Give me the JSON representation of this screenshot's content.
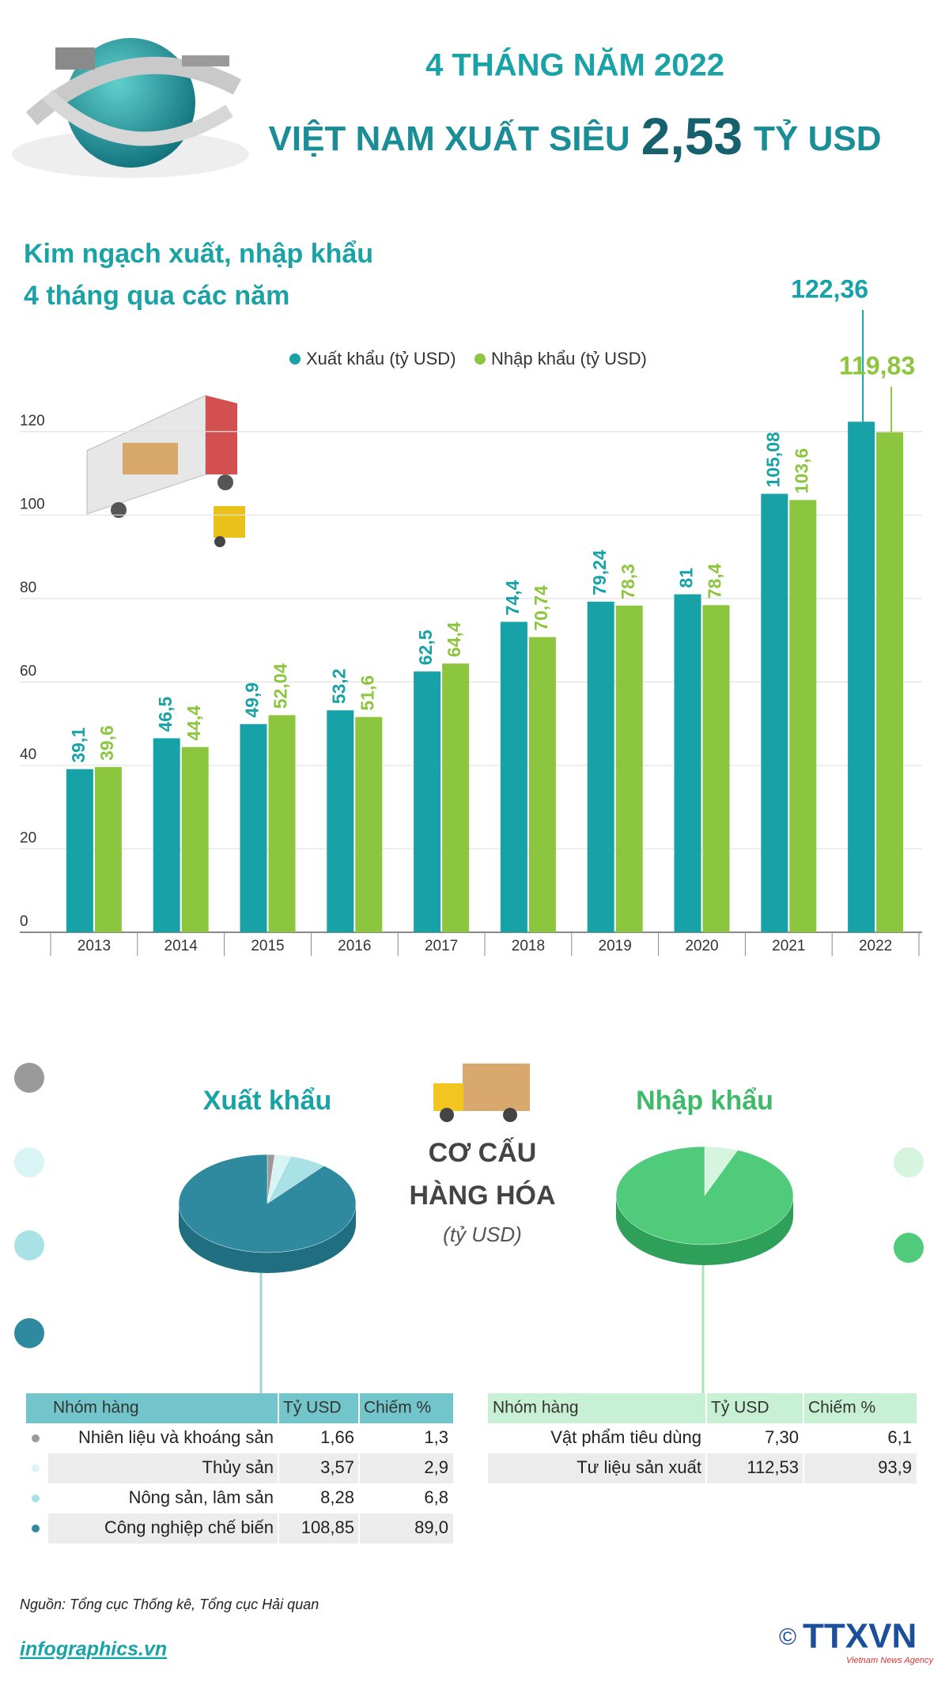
{
  "header": {
    "line1": "4 THÁNG NĂM 2022",
    "line2_pre": "VIỆT NAM XUẤT SIÊU",
    "line2_num": "2,53",
    "line2_post": "TỶ USD"
  },
  "chart_data": [
    {
      "type": "bar",
      "title": "Kim ngạch xuất, nhập khẩu",
      "subtitle": "4 tháng qua các năm",
      "categories": [
        "2013",
        "2014",
        "2015",
        "2016",
        "2017",
        "2018",
        "2019",
        "2020",
        "2021",
        "2022"
      ],
      "series": [
        {
          "name": "Xuất khẩu (tỷ USD)",
          "color": "#17a2a8",
          "values": [
            39.1,
            46.5,
            49.9,
            53.2,
            62.5,
            74.4,
            79.24,
            81,
            105.08,
            122.36
          ],
          "value_labels": [
            "39,1",
            "46,5",
            "49,9",
            "53,2",
            "62,5",
            "74,4",
            "79,24",
            "81",
            "105,08",
            "122,36"
          ]
        },
        {
          "name": "Nhập khẩu (tỷ USD)",
          "color": "#8cc63f",
          "values": [
            39.6,
            44.4,
            52.04,
            51.6,
            64.4,
            70.74,
            78.3,
            78.4,
            103.6,
            119.83
          ],
          "value_labels": [
            "39,6",
            "44,4",
            "52,04",
            "51,6",
            "64,4",
            "70,74",
            "78,3",
            "78,4",
            "103,6",
            "119,83"
          ]
        }
      ],
      "ylim": [
        0,
        130
      ],
      "yticks": [
        0,
        20,
        40,
        60,
        80,
        100,
        120
      ],
      "grid": true
    },
    {
      "type": "pie",
      "title": "Xuất khẩu",
      "columns": [
        "Nhóm hàng",
        "Tỷ USD",
        "Chiếm %"
      ],
      "categories": [
        "Nhiên liệu và khoáng sản",
        "Thủy sản",
        "Nông sản, lâm sản",
        "Công nghiệp chế biến"
      ],
      "values": [
        1.66,
        3.57,
        8.28,
        108.85
      ],
      "value_labels": [
        "1,66",
        "3,57",
        "8,28",
        "108,85"
      ],
      "shares": [
        1.3,
        2.9,
        6.8,
        89.0
      ],
      "share_labels": [
        "1,3",
        "2,9",
        "6,8",
        "89,0"
      ],
      "colors": [
        "#9a9a9a",
        "#d8f4f5",
        "#a9e2e6",
        "#2f8aa0"
      ]
    },
    {
      "type": "pie",
      "title": "Nhập khẩu",
      "columns": [
        "Nhóm hàng",
        "Tỷ USD",
        "Chiếm %"
      ],
      "categories": [
        "Vật phẩm tiêu dùng",
        "Tư liệu sản xuất"
      ],
      "values": [
        7.3,
        112.53
      ],
      "value_labels": [
        "7,30",
        "112,53"
      ],
      "shares": [
        6.1,
        93.9
      ],
      "share_labels": [
        "6,1",
        "93,9"
      ],
      "colors": [
        "#d5f5de",
        "#4fcb7b"
      ]
    }
  ],
  "center": {
    "line1": "CƠ CẤU",
    "line2": "HÀNG HÓA",
    "unit": "(tỷ USD)"
  },
  "footer": {
    "source": "Nguồn: Tổng cục Thống kê, Tổng cục Hải quan",
    "site": "infographics.vn",
    "copyright": "©",
    "logo": "TTXVN",
    "logo_sub": "Vietnam News Agency"
  }
}
